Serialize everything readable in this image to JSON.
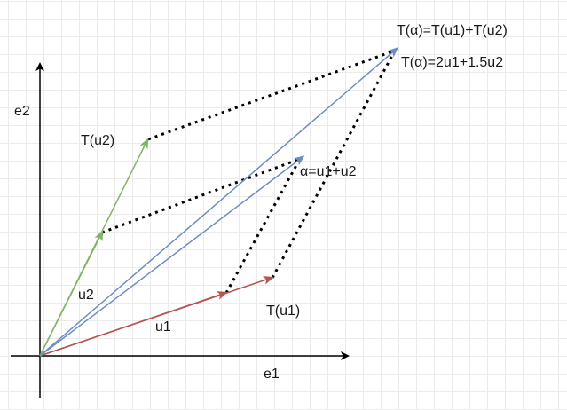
{
  "labels": {
    "e1": "e1",
    "e2": "e2",
    "u1": "u1",
    "u2": "u2",
    "T_u1": "T(u1)",
    "T_u2": "T(u2)",
    "alpha": "α=u1+u2",
    "T_alpha_sum": "T(α)=T(u1)+T(u2)",
    "T_alpha_value": "T(α)=2u1+1.5u2"
  },
  "colors": {
    "axis": "#000000",
    "u_vectors_red": "#b85450",
    "u_vectors_green": "#82b366",
    "sum_vectors_blue": "#6c8ebf",
    "dotted": "#000000"
  }
}
